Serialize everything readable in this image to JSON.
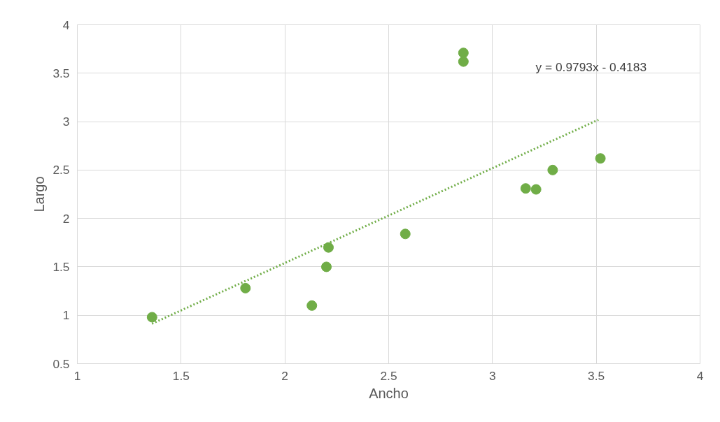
{
  "chart_data": {
    "type": "scatter",
    "xlabel": "Ancho",
    "ylabel": "Largo",
    "xlim": [
      1,
      4
    ],
    "ylim": [
      0.5,
      4
    ],
    "xticks": [
      1,
      1.5,
      2,
      2.5,
      3,
      3.5,
      4
    ],
    "yticks": [
      0.5,
      1,
      1.5,
      2,
      2.5,
      3,
      3.5,
      4
    ],
    "grid": true,
    "marker": "circle",
    "series": [
      {
        "color": "#70ad47",
        "x": [
          1.36,
          1.81,
          2.13,
          2.2,
          2.21,
          2.58,
          2.86,
          2.86,
          3.16,
          3.21,
          3.29,
          3.52
        ],
        "values": [
          0.98,
          1.28,
          1.1,
          1.5,
          1.7,
          1.84,
          3.71,
          3.62,
          2.31,
          2.3,
          2.5,
          2.62
        ]
      },
      {
        "type": "line",
        "color": "#70ad47",
        "line_style": "dotted",
        "marker": "none",
        "x": [
          1.36,
          3.51
        ],
        "values": [
          0.913,
          3.019
        ]
      }
    ],
    "annotations": [
      "y = 0.9793x - 0.4183"
    ]
  }
}
